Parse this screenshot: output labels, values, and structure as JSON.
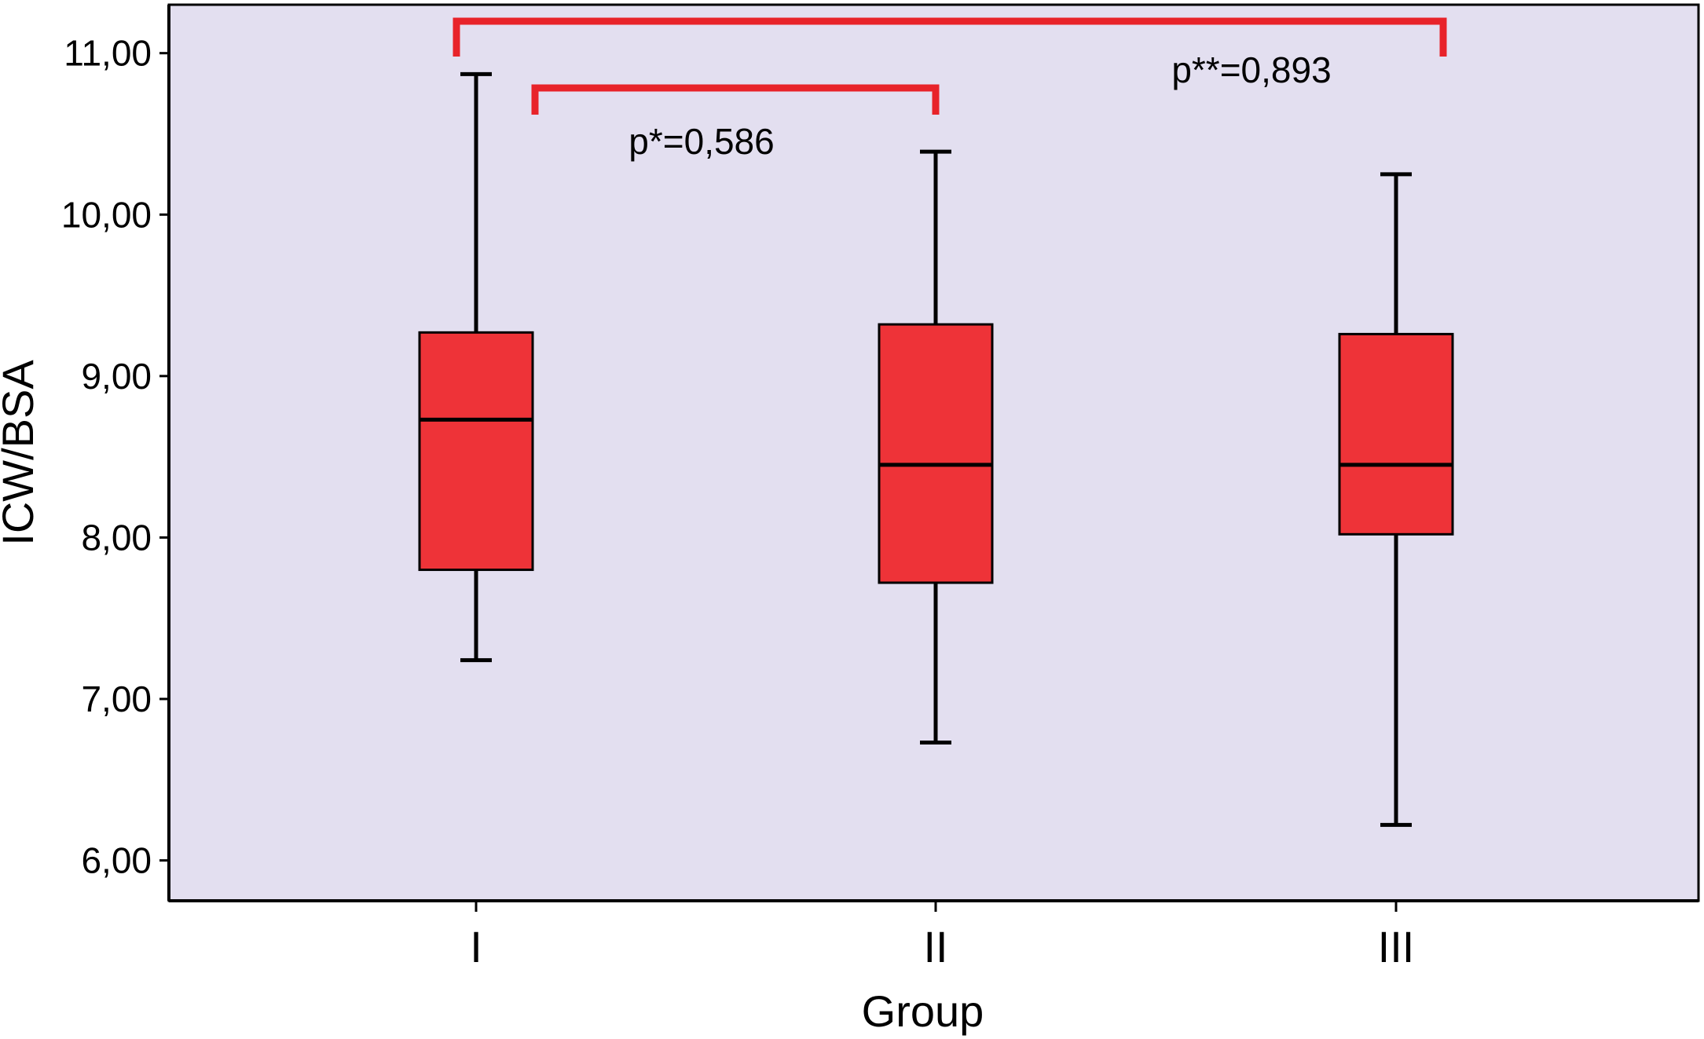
{
  "chart_data": {
    "type": "boxplot",
    "xlabel": "Group",
    "ylabel": "ICW/BSA",
    "ylim": [
      5.75,
      11.3
    ],
    "y_ticks": [
      6,
      7,
      8,
      9,
      10,
      11
    ],
    "y_tick_labels": [
      "6,00",
      "7,00",
      "8,00",
      "9,00",
      "10,00",
      "11,00"
    ],
    "categories": [
      "I",
      "II",
      "III"
    ],
    "boxes": [
      {
        "category": "I",
        "min": 7.24,
        "q1": 7.8,
        "median": 8.73,
        "q3": 9.27,
        "max": 10.87
      },
      {
        "category": "II",
        "min": 6.73,
        "q1": 7.72,
        "median": 8.45,
        "q3": 9.32,
        "max": 10.39
      },
      {
        "category": "III",
        "min": 6.22,
        "q1": 8.02,
        "median": 8.45,
        "q3": 9.26,
        "max": 10.25
      }
    ],
    "comparisons": [
      {
        "from": "I",
        "to": "II",
        "label": "p*=0,586"
      },
      {
        "from": "I",
        "to": "III",
        "label": "p**=0,893"
      }
    ],
    "grid": false,
    "legend": "none",
    "colors": {
      "plot_background": "#e3dff0",
      "box_fill": "#ee3338",
      "box_stroke": "#000000",
      "comparison_bracket": "#e8232a",
      "axis": "#000000"
    }
  }
}
